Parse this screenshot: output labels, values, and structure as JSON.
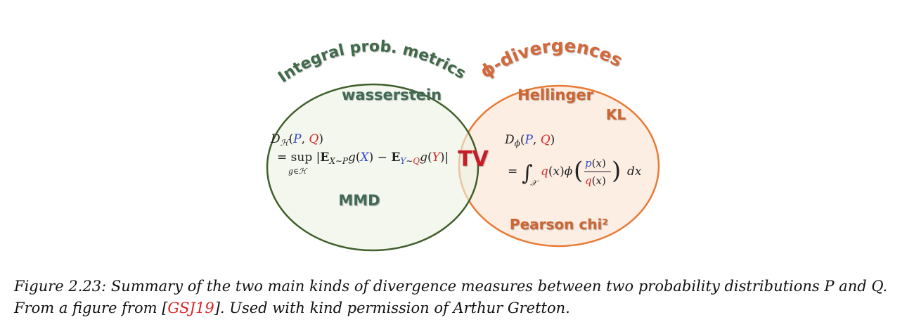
{
  "left_set": {
    "title": "Integral prob. metrics",
    "terms": [
      "wasserstein",
      "MMD"
    ],
    "formula_lhs_sub": "H",
    "formula_body": "= sup |E",
    "formula_sub": "g∈H",
    "colors": {
      "fill": "#eef2e2",
      "stroke": "#3f5f2a",
      "title": "#3f6a4a",
      "terms": "#3f6a55"
    }
  },
  "right_set": {
    "title": "ϕ-divergences",
    "terms": [
      "Hellinger",
      "KL",
      "Pearson chi²"
    ],
    "colors": {
      "fill": "#fdeee4",
      "stroke": "#e87a35",
      "title": "#d2673a",
      "terms": "#cc6530"
    }
  },
  "intersection": {
    "label": "TV",
    "color": "#c81e28"
  },
  "caption": {
    "prefix": "Figure 2.23: Summary of the two main kinds of divergence measures between two probability distributions P and Q. From a figure from [",
    "citation": "GSJ19",
    "suffix": "]. Used with kind permission of Arthur Gretton."
  }
}
